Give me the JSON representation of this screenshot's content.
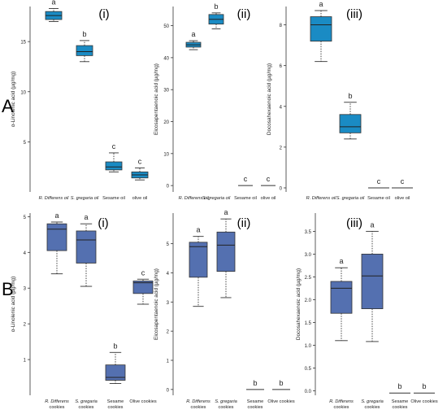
{
  "figure": {
    "row_a_label": "A",
    "row_b_label": "B"
  },
  "chart_data": [
    {
      "type": "box",
      "row": "A",
      "panel_label": "(i)",
      "ylabel": "α-Linolenic acid (µg/mg)",
      "ylim": [
        0,
        18.5
      ],
      "yticks": [
        5,
        10,
        15
      ],
      "categories": [
        "R. Differens oil",
        "S. gregaria oil",
        "Sesame oil",
        "olive oil"
      ],
      "boxes": [
        {
          "min": 17.0,
          "q1": 17.2,
          "median": 17.6,
          "q3": 18.0,
          "max": 18.3,
          "letter": "a"
        },
        {
          "min": 13.0,
          "q1": 13.6,
          "median": 14.0,
          "q3": 14.6,
          "max": 15.1,
          "letter": "b"
        },
        {
          "min": 2.0,
          "q1": 2.2,
          "median": 2.5,
          "q3": 3.0,
          "max": 3.9,
          "letter": "c"
        },
        {
          "min": 1.2,
          "q1": 1.4,
          "median": 1.7,
          "q3": 2.0,
          "max": 2.4,
          "letter": "c"
        }
      ],
      "color": "#1a8bc4"
    },
    {
      "type": "box",
      "row": "A",
      "panel_label": "(ii)",
      "ylabel": "Eicosapentaenoic acid (µg/mg)",
      "ylim": [
        -2,
        56
      ],
      "yticks": [
        0,
        10,
        20,
        30,
        40,
        50
      ],
      "categories": [
        "R. Differens oil",
        "S. gregaria oil",
        "Sesame oil",
        "olive oil"
      ],
      "boxes": [
        {
          "min": 42.5,
          "q1": 43.3,
          "median": 44.0,
          "q3": 44.8,
          "max": 45.3,
          "letter": "a"
        },
        {
          "min": 49.0,
          "q1": 50.5,
          "median": 52.0,
          "q3": 53.5,
          "max": 54.0,
          "letter": "b"
        },
        {
          "min": 0,
          "q1": 0,
          "median": 0,
          "q3": 0,
          "max": 0,
          "letter": "c"
        },
        {
          "min": 0,
          "q1": 0,
          "median": 0,
          "q3": 0,
          "max": 0,
          "letter": "c"
        }
      ],
      "color": "#1a8bc4"
    },
    {
      "type": "box",
      "row": "A",
      "panel_label": "(iii)",
      "ylabel": "Docosahexaenoic acid (µg/mg)",
      "ylim": [
        -0.2,
        8.9
      ],
      "yticks": [
        0,
        2,
        4,
        6,
        8
      ],
      "categories": [
        "R. Differens oil",
        "S. gregaria oil",
        "Sesame oil",
        "olive oil"
      ],
      "boxes": [
        {
          "min": 6.2,
          "q1": 7.2,
          "median": 8.0,
          "q3": 8.4,
          "max": 8.7,
          "letter": "a"
        },
        {
          "min": 2.4,
          "q1": 2.7,
          "median": 3.0,
          "q3": 3.6,
          "max": 4.2,
          "letter": "b"
        },
        {
          "min": 0,
          "q1": 0,
          "median": 0,
          "q3": 0,
          "max": 0,
          "letter": "c"
        },
        {
          "min": 0,
          "q1": 0,
          "median": 0,
          "q3": 0,
          "max": 0,
          "letter": "c"
        }
      ],
      "color": "#1a8bc4"
    },
    {
      "type": "box",
      "row": "B",
      "panel_label": "(i)",
      "ylabel": "α-Linolenic acid (µg/mg)",
      "ylim": [
        0,
        5.1
      ],
      "yticks": [
        1,
        2,
        3,
        4,
        5
      ],
      "categories": [
        "R. Differens\ncookies",
        "S. gregaria\ncookies",
        "Sesame\ncookies",
        "Olive cookies"
      ],
      "boxes": [
        {
          "min": 3.4,
          "q1": 4.05,
          "median": 4.65,
          "q3": 4.8,
          "max": 4.85,
          "letter": "a"
        },
        {
          "min": 3.05,
          "q1": 3.7,
          "median": 4.35,
          "q3": 4.6,
          "max": 4.8,
          "letter": "a"
        },
        {
          "min": 0.33,
          "q1": 0.42,
          "median": 0.5,
          "q3": 0.85,
          "max": 1.2,
          "letter": "b"
        },
        {
          "min": 2.55,
          "q1": 2.85,
          "median": 3.15,
          "q3": 3.2,
          "max": 3.25,
          "letter": "c"
        }
      ],
      "color": "#5470b0"
    },
    {
      "type": "box",
      "row": "B",
      "panel_label": "(ii)",
      "ylabel": "Eicosapentaenoic acid (µg/mg)",
      "ylim": [
        -0.2,
        6.05
      ],
      "yticks": [
        0,
        1,
        2,
        3,
        4,
        5
      ],
      "categories": [
        "R. Differens\ncookies",
        "S. gregaria\ncookies",
        "Sesame\ncookies",
        "Olive cookies"
      ],
      "boxes": [
        {
          "min": 2.85,
          "q1": 3.85,
          "median": 4.9,
          "q3": 5.05,
          "max": 5.25,
          "letter": "a"
        },
        {
          "min": 3.15,
          "q1": 4.05,
          "median": 4.95,
          "q3": 5.4,
          "max": 5.85,
          "letter": "a"
        },
        {
          "min": 0,
          "q1": 0,
          "median": 0,
          "q3": 0,
          "max": 0,
          "letter": "b"
        },
        {
          "min": 0,
          "q1": 0,
          "median": 0,
          "q3": 0,
          "max": 0,
          "letter": "b"
        }
      ],
      "color": "#5470b0"
    },
    {
      "type": "box",
      "row": "B",
      "panel_label": "(iii)",
      "ylabel": "Docosahexaenoic acid (µg/mg)",
      "ylim": [
        -0.1,
        3.9
      ],
      "yticks": [
        0.0,
        0.5,
        1.0,
        1.5,
        2.0,
        2.5,
        3.0,
        3.5
      ],
      "tick_decimals": 1,
      "categories": [
        "R. Differens\ncookies",
        "S. gregaria\ncookies",
        "Sesame\ncookies",
        "Olive cookies"
      ],
      "boxes": [
        {
          "min": 1.1,
          "q1": 1.7,
          "median": 2.25,
          "q3": 2.4,
          "max": 2.7,
          "letter": "a"
        },
        {
          "min": 1.08,
          "q1": 1.8,
          "median": 2.52,
          "q3": 3.0,
          "max": 3.5,
          "letter": "a"
        },
        {
          "min": -0.05,
          "q1": -0.05,
          "median": -0.05,
          "q3": -0.05,
          "max": -0.05,
          "letter": "b"
        },
        {
          "min": -0.05,
          "q1": -0.05,
          "median": -0.05,
          "q3": -0.05,
          "max": -0.05,
          "letter": "b"
        }
      ],
      "color": "#5470b0"
    }
  ]
}
